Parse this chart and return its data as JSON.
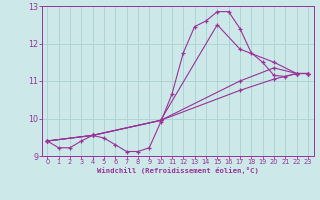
{
  "bg_color": "#cce8e8",
  "grid_color": "#b0d4d4",
  "line_color": "#993399",
  "marker_color": "#993399",
  "xlabel": "Windchill (Refroidissement éolien,°C)",
  "xlabel_color": "#993399",
  "tick_color": "#993399",
  "xlim": [
    -0.5,
    23.5
  ],
  "ylim": [
    9.0,
    13.0
  ],
  "yticks": [
    9,
    10,
    11,
    12,
    13
  ],
  "xticks": [
    0,
    1,
    2,
    3,
    4,
    5,
    6,
    7,
    8,
    9,
    10,
    11,
    12,
    13,
    14,
    15,
    16,
    17,
    18,
    19,
    20,
    21,
    22,
    23
  ],
  "series": [
    {
      "x": [
        0,
        1,
        2,
        3,
        4,
        5,
        6,
        7,
        8,
        9,
        10,
        11,
        12,
        13,
        14,
        15,
        16,
        17,
        18,
        19,
        20,
        21,
        22,
        23
      ],
      "y": [
        9.4,
        9.22,
        9.22,
        9.4,
        9.55,
        9.48,
        9.3,
        9.12,
        9.12,
        9.22,
        9.9,
        10.65,
        11.75,
        12.45,
        12.6,
        12.85,
        12.85,
        12.4,
        11.75,
        11.5,
        11.15,
        11.12,
        11.2,
        11.2
      ]
    },
    {
      "x": [
        0,
        4,
        10,
        15,
        17,
        20,
        22,
        23
      ],
      "y": [
        9.4,
        9.55,
        9.95,
        12.5,
        11.85,
        11.5,
        11.2,
        11.2
      ]
    },
    {
      "x": [
        0,
        4,
        10,
        17,
        20,
        22,
        23
      ],
      "y": [
        9.4,
        9.55,
        9.95,
        11.0,
        11.35,
        11.2,
        11.2
      ]
    },
    {
      "x": [
        0,
        4,
        10,
        17,
        20,
        22,
        23
      ],
      "y": [
        9.4,
        9.55,
        9.95,
        10.75,
        11.05,
        11.2,
        11.2
      ]
    }
  ]
}
